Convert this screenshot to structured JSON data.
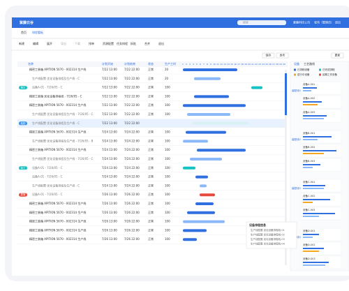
{
  "header": {
    "logo": "紫藤云谷",
    "search": "搜索",
    "company": "紫藤科技公司",
    "user": "张伟（管理员）",
    "logout": "退出"
  },
  "tabs": [
    "首页",
    "排程看板"
  ],
  "toolbar": [
    "新建",
    "编辑",
    "展开",
    "导出",
    "下载",
    "排单",
    "资源配置",
    "任务排程",
    "拆批",
    "合并",
    "退出"
  ],
  "actions": [
    "保存",
    "发布"
  ],
  "update": "更新",
  "table": {
    "columns": [
      "名称",
      "计划开始",
      "计划结束",
      "状态",
      "生产工时"
    ],
    "days": [
      1,
      2,
      3,
      4,
      5,
      6,
      7,
      8,
      9,
      10,
      11,
      12,
      13,
      14,
      15,
      16,
      17,
      18,
      19,
      20,
      21,
      22,
      23,
      24,
      25,
      26,
      27,
      28,
      29,
      30
    ],
    "rows": [
      {
        "name": "精密工装箱 APITION 5670 - 002314 生产线",
        "start": "7/22 13:00",
        "end": "7/22 22:00",
        "status": "正常",
        "hours": "20"
      },
      {
        "name": "生产线配置 优化设备排程及生产线 - C",
        "start": "7/22 13:00",
        "end": "7/22 22:00",
        "status": "正常",
        "hours": "20"
      },
      {
        "tag": "加工",
        "name": "设备A-01 - 7/26/05 - C",
        "start": "7/22 13:00",
        "end": "7/22 22:00",
        "status": "正常",
        "hours": "100"
      },
      {
        "name": "精密工装箱 优化设备排程线 - 7/26/05 - C",
        "start": "7/22 13:00",
        "end": "7/22 22:00",
        "status": "正常",
        "hours": "100"
      },
      {
        "name": "精密工装箱 APITION 5670 - 002314 生产线",
        "start": "7/22 13:00",
        "end": "7/22 22:00",
        "status": "正常",
        "hours": "100"
      },
      {
        "name": "生产线配置 优化设备排程及生产线 - 7/26/05 - C",
        "start": "7/22 13:00",
        "end": "7/22 22:00",
        "status": "正常",
        "hours": "100"
      },
      {
        "tag": "装配",
        "name": "生产线配置 优化设备排程及生产线 - C",
        "start": "7/22 13:00",
        "end": "7/22 22:00",
        "status": "",
        "hours": ""
      },
      {
        "name": "精密工装箱 APITION 5670 - 002314 生产线",
        "start": "7/24 13:00",
        "end": "7/24 22:00",
        "status": "正常",
        "hours": "100"
      },
      {
        "name": "生产线配置 优化设备排程及生产线 - 7/26/05 - B",
        "start": "7/24 13:00",
        "end": "7/24 22:00",
        "status": "正常",
        "hours": "100"
      },
      {
        "name": "精密工装箱 APITION 5670 - 002314 生产线",
        "start": "7/24 13:00",
        "end": "7/24 22:00",
        "status": "正常",
        "hours": "100"
      },
      {
        "name": "生产线配置 优化设备排程及生产线 - 7/26/05 - C",
        "start": "7/24 13:00",
        "end": "7/24 22:00",
        "status": "正常",
        "hours": "100"
      },
      {
        "tag": "加工",
        "name": "设备A-01 - 7/26/05 - C",
        "start": "7/24 13:00",
        "end": "7/24 22:00",
        "status": "正常",
        "hours": "100"
      },
      {
        "name": "设备A-01 - 7/26/05 - C",
        "start": "7/24 13:00",
        "end": "7/24 22:00",
        "status": "正常",
        "hours": "100"
      },
      {
        "name": "生产线配置 优化设备排程及生产线 - C",
        "start": "7/24 13:00",
        "end": "7/24 22:00",
        "status": "正常",
        "hours": "100"
      },
      {
        "tag": "异常",
        "name": "设备A-01 - 7/26/05 - C",
        "start": "7/26 13:00",
        "end": "7/26 22:00",
        "status": "正常",
        "hours": "100"
      },
      {
        "name": "精密工装箱 APITION 5670 - 002314 生产线",
        "start": "7/26 13:00",
        "end": "7/26 22:00",
        "status": "正常",
        "hours": "100"
      },
      {
        "name": "精密工装箱 APITION 5670 - 002314 生产线",
        "start": "7/26 13:00",
        "end": "7/26 22:00",
        "status": "正常",
        "hours": "100"
      },
      {
        "name": "精密工装箱 APITION 5670 - 002314 生产线",
        "start": "7/26 13:00",
        "end": "7/26 22:00",
        "status": "正常",
        "hours": "100"
      },
      {
        "name": "精密工装箱 APITION 5670 - 002314 生产线",
        "start": "7/26 13:00",
        "end": "7/26 22:00",
        "status": "正常",
        "hours": "100"
      },
      {
        "name": "精密工装箱 APITION 5670 - 002314 生产线",
        "start": "7/26 13:00",
        "end": "7/26 22:00",
        "status": "正常",
        "hours": "100"
      }
    ]
  },
  "panel": {
    "tabs": [
      "设备",
      "工艺路线"
    ],
    "legend": [
      "已排程设备",
      "已完成排程",
      "进行中设备",
      "延期工作设备"
    ],
    "groups": [
      {
        "name": "装配线01",
        "items": [
          "设备A-001",
          "设备A-002",
          "设备A-003"
        ]
      },
      {
        "name": "装配线02",
        "items": [
          "设备B-001",
          "设备B-002",
          "设备B-003"
        ]
      },
      {
        "name": "装配线03",
        "items": [
          "设备C-001",
          "设备C-002",
          "设备C-003"
        ]
      },
      {
        "name": "装配线04",
        "items": [
          "设备D-001",
          "设备D-002",
          "设备D-003"
        ]
      }
    ]
  },
  "tooltip": {
    "title": "设备排程信息",
    "lines": [
      "生产线配置 优化设备排程线-01",
      "生产线配置 优化设备排程线-02",
      "生产线配置 优化设备排程线-03",
      "生产线配置 优化设备排程线-04"
    ]
  }
}
